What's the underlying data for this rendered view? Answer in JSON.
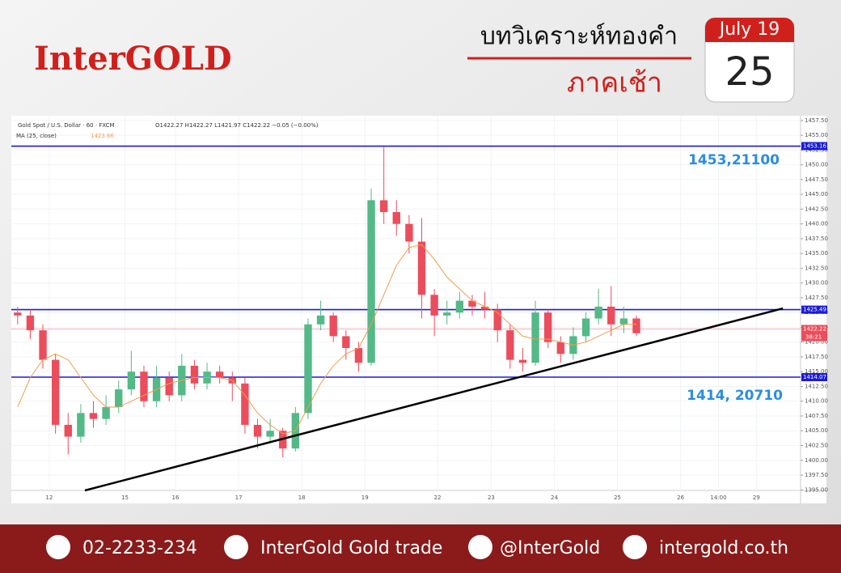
{
  "banner": {
    "brand": "InterGOLD",
    "title": "บทวิเคราะห์ทองคำ",
    "subtitle": "ภาคเช้า",
    "calendar_month": "July 19",
    "calendar_day": "25"
  },
  "chart_data": {
    "type": "candlestick",
    "symbol": "Gold Spot / U.S. Dollar · 60 · FXCM",
    "ohlc_legend": "O1422.27 H1422.27 L1421.97 C1422.22 −0.05 (−0.00%)",
    "indicator_value": 1423.66,
    "x": [
      2,
      6,
      10,
      14,
      18,
      22,
      26,
      30,
      34,
      38,
      42,
      46,
      50,
      54,
      58,
      62,
      66,
      70,
      74,
      78,
      82,
      86,
      90,
      94,
      98,
      102,
      106,
      110,
      114,
      118,
      122,
      126,
      130,
      134,
      138,
      142,
      146,
      150,
      154,
      158,
      162,
      166,
      170,
      174,
      178,
      182,
      186,
      190,
      194,
      198
    ],
    "open": [
      1425,
      1424.5,
      1422,
      1417,
      1406,
      1404,
      1408,
      1407,
      1409,
      1412,
      1415,
      1410,
      1414,
      1411,
      1416,
      1413,
      1415,
      1414,
      1413,
      1406,
      1404,
      1405,
      1402,
      1408,
      1423,
      1424.5,
      1421,
      1419,
      1416.5,
      1444,
      1442,
      1440,
      1437,
      1428,
      1424.5,
      1425,
      1427,
      1426,
      1425.5,
      1422,
      1417,
      1416.5,
      1425,
      1420,
      1418,
      1421,
      1424,
      1426,
      1423,
      1424
    ],
    "high": [
      1426,
      1425.5,
      1423,
      1418,
      1408,
      1409.5,
      1410,
      1411,
      1413.5,
      1418.5,
      1416,
      1416,
      1415,
      1418,
      1417,
      1416.5,
      1416,
      1415,
      1414,
      1407,
      1407,
      1405.5,
      1409,
      1424,
      1427,
      1425,
      1422,
      1420,
      1446,
      1453,
      1444,
      1441.5,
      1441,
      1429,
      1427,
      1428.5,
      1428,
      1428.5,
      1426.5,
      1423,
      1419,
      1427,
      1425.5,
      1421,
      1422.5,
      1425,
      1429,
      1429.5,
      1426,
      1424.5
    ],
    "low": [
      1423,
      1420.5,
      1415.5,
      1404.5,
      1401,
      1403,
      1405.5,
      1406,
      1408,
      1411,
      1409,
      1409,
      1410,
      1410,
      1412,
      1412,
      1413,
      1410,
      1404.5,
      1402,
      1403,
      1400.5,
      1401.5,
      1407,
      1422,
      1420,
      1417,
      1415,
      1416,
      1440,
      1438,
      1435,
      1424,
      1421,
      1423,
      1424,
      1424.5,
      1424,
      1420,
      1415.5,
      1415,
      1416,
      1419,
      1416.5,
      1417,
      1420,
      1423,
      1421,
      1421.5,
      1421
    ],
    "close": [
      1424.5,
      1422,
      1417,
      1406,
      1404,
      1408,
      1407,
      1409,
      1412,
      1415,
      1410,
      1414,
      1411,
      1416,
      1413,
      1415,
      1414,
      1413,
      1406,
      1404,
      1405,
      1402,
      1408,
      1423,
      1424.5,
      1421,
      1419,
      1416.5,
      1444,
      1442,
      1440,
      1437,
      1428,
      1424.5,
      1425,
      1427,
      1426,
      1425.5,
      1422,
      1417,
      1416.5,
      1425,
      1420,
      1418,
      1421,
      1424,
      1426,
      1423,
      1424,
      1421.5
    ],
    "up_color": "#53b987",
    "down_color": "#eb4d5c",
    "ma": {
      "name": "MA (25, close)",
      "color": "#f39c4a",
      "values": [
        1409,
        1414,
        1417,
        1418,
        1417,
        1414,
        1411,
        1409,
        1409,
        1410,
        1411,
        1412,
        1413,
        1413.5,
        1414,
        1414,
        1414,
        1413.5,
        1411,
        1408,
        1406,
        1404.5,
        1405,
        1409,
        1413,
        1416,
        1418,
        1419,
        1423,
        1428,
        1433,
        1436,
        1436.5,
        1434,
        1431,
        1429,
        1427,
        1426,
        1425,
        1423,
        1421,
        1420.5,
        1420.5,
        1420,
        1419.5,
        1420,
        1421,
        1422,
        1423,
        1423
      ]
    },
    "levels": [
      {
        "value": 1453.16,
        "color": "#1a1adb"
      },
      {
        "value": 1425.49,
        "color": "#1a1adb"
      },
      {
        "value": 1414.07,
        "color": "#1a1adb"
      }
    ],
    "current_price": {
      "value": 1422.22,
      "color": "#eb4d5c",
      "countdown": "38:21"
    },
    "annotations": [
      "1453,21100",
      "1414, 20710"
    ],
    "trendline": {
      "x": [
        23.3,
        244.4
      ],
      "y": [
        1394.9,
        1425.7
      ],
      "color": "#000000"
    },
    "xlim": [
      0,
      250
    ],
    "ylim": [
      1394.9,
      1458.3
    ],
    "xticks": [
      12,
      {
        "value": 36,
        "label": "15"
      },
      {
        "value": 52,
        "label": "16"
      },
      {
        "value": 72,
        "label": "17"
      },
      {
        "value": 92,
        "label": "18"
      },
      {
        "value": 112,
        "label": "19"
      },
      {
        "value": 135,
        "label": "22"
      },
      {
        "value": 152,
        "label": "23"
      },
      {
        "value": 172,
        "label": "24"
      },
      {
        "value": 192,
        "label": "25"
      },
      {
        "value": 212,
        "label": "26"
      },
      {
        "value": 224,
        "label": "14:00"
      },
      {
        "value": 236,
        "label": "29"
      }
    ],
    "yticks": [
      {
        "value": 1395,
        "label": "1395.00"
      },
      {
        "value": 1397.5,
        "label": "1397.50"
      },
      {
        "value": 1400,
        "label": "1400.00"
      },
      {
        "value": 1402.5,
        "label": "1402.50"
      },
      {
        "value": 1405,
        "label": "1405.00"
      },
      {
        "value": 1407.5,
        "label": "1407.50"
      },
      {
        "value": 1410,
        "label": "1410.00"
      },
      {
        "value": 1412.5,
        "label": "1412.50"
      },
      {
        "value": 1415,
        "label": "1415.00"
      },
      {
        "value": 1417.5,
        "label": "1417.50"
      },
      {
        "value": 1420,
        "label": "1420.00"
      },
      {
        "value": 1422.5,
        "label": "1422.50"
      },
      {
        "value": 1425,
        "label": "1425.00"
      },
      {
        "value": 1427.5,
        "label": "1427.50"
      },
      {
        "value": 1430,
        "label": "1430.00"
      },
      {
        "value": 1432.5,
        "label": "1432.50"
      },
      {
        "value": 1435,
        "label": "1435.00"
      },
      {
        "value": 1437.5,
        "label": "1437.50"
      },
      {
        "value": 1440,
        "label": "1440.00"
      },
      {
        "value": 1442.5,
        "label": "1442.50"
      },
      {
        "value": 1445,
        "label": "1445.00"
      },
      {
        "value": 1447.5,
        "label": "1447.50"
      },
      {
        "value": 1450,
        "label": "1450.00"
      },
      {
        "value": 1452.5,
        "label": "1452.50"
      },
      {
        "value": 1455,
        "label": "1455.00"
      },
      {
        "value": 1457.5,
        "label": "1457.50"
      }
    ],
    "grid": true
  },
  "footer": {
    "phone": "02-2233-234",
    "facebook": "InterGold Gold trade",
    "line": "@InterGold",
    "website": "intergold.co.th"
  }
}
